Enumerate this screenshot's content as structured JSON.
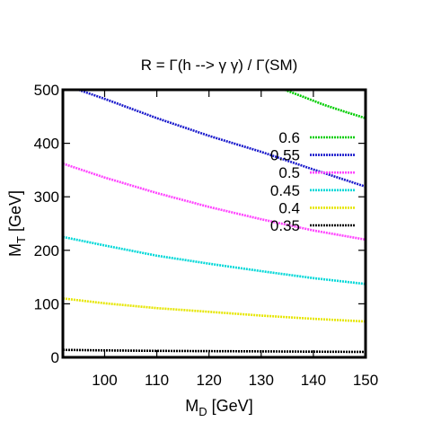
{
  "chart_data": {
    "type": "line",
    "title": "R = Γ(h --> γ γ) / Γ(SM)",
    "xlabel": {
      "main": "M",
      "sub": "D",
      "unit": " [GeV]"
    },
    "ylabel": {
      "main": "M",
      "sub": "T",
      "unit": " [GeV]"
    },
    "xlim": [
      92,
      150
    ],
    "ylim": [
      0,
      500
    ],
    "xticks": [
      100,
      110,
      120,
      130,
      140,
      150
    ],
    "yticks": [
      0,
      100,
      200,
      300,
      400,
      500
    ],
    "grid": false,
    "legend_position": "right-center",
    "series": [
      {
        "name": "0.6",
        "color": "#00cc00",
        "x": [
          134.5,
          138,
          142,
          146,
          150
        ],
        "y": [
          500,
          487,
          472,
          459,
          447
        ]
      },
      {
        "name": "0.55",
        "color": "#1a1acc",
        "x": [
          95,
          100,
          110,
          120,
          130,
          140,
          150
        ],
        "y": [
          500,
          483,
          447,
          414,
          384,
          351,
          319
        ]
      },
      {
        "name": "0.5",
        "color": "#ff44ff",
        "x": [
          92,
          100,
          110,
          120,
          130,
          140,
          150
        ],
        "y": [
          362,
          336,
          307,
          281,
          258,
          237,
          220
        ]
      },
      {
        "name": "0.45",
        "color": "#00d8d8",
        "x": [
          92,
          100,
          110,
          120,
          130,
          140,
          150
        ],
        "y": [
          225,
          209,
          190,
          175,
          161,
          148,
          137
        ]
      },
      {
        "name": "0.4",
        "color": "#e6e600",
        "x": [
          92,
          100,
          110,
          120,
          130,
          140,
          150
        ],
        "y": [
          110,
          101,
          92,
          85,
          78,
          72,
          67
        ]
      },
      {
        "name": "0.35",
        "color": "#000000",
        "x": [
          92,
          100,
          110,
          120,
          130,
          140,
          150
        ],
        "y": [
          14,
          13,
          12,
          11.5,
          11,
          10.5,
          10
        ]
      }
    ]
  }
}
